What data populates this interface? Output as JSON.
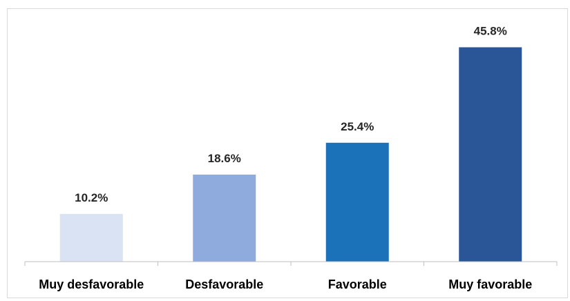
{
  "chart_data": {
    "type": "bar",
    "categories": [
      "Muy desfavorable",
      "Desfavorable",
      "Favorable",
      "Muy favorable"
    ],
    "values": [
      10.2,
      18.6,
      25.4,
      45.8
    ],
    "data_labels": [
      "10.2%",
      "18.6%",
      "25.4%",
      "45.8%"
    ],
    "colors": [
      "#dae3f3",
      "#8faadc",
      "#1b72b8",
      "#2a5597"
    ],
    "title": "",
    "xlabel": "",
    "ylabel": "",
    "ylim": [
      0,
      50
    ],
    "grid": false,
    "legend": "none"
  }
}
